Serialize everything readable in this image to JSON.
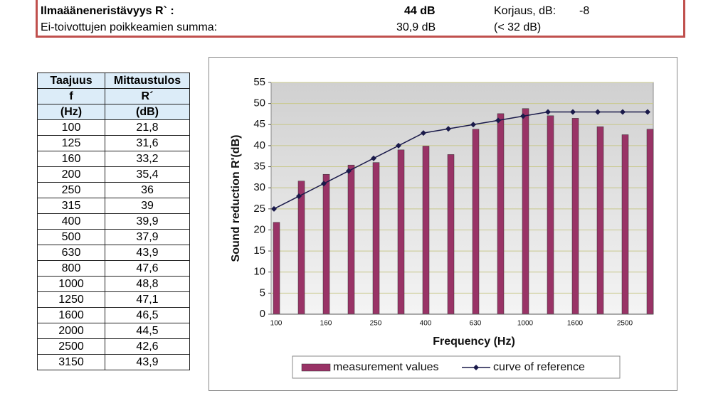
{
  "header": {
    "rows": [
      [
        "Ilmaääneneristävyys R` :",
        "44 dB",
        "Korjaus, dB:",
        "-8"
      ],
      [
        "Ei-toivottujen poikkeamien summa:",
        "30,9 dB",
        "(< 32 dB)"
      ]
    ]
  },
  "table": {
    "header": [
      [
        "Taajuus",
        "Mittaustulos"
      ],
      [
        "f",
        "R´"
      ],
      [
        "(Hz)",
        "(dB)"
      ]
    ],
    "rows": [
      [
        "100",
        "21,8"
      ],
      [
        "125",
        "31,6"
      ],
      [
        "160",
        "33,2"
      ],
      [
        "200",
        "35,4"
      ],
      [
        "250",
        "36"
      ],
      [
        "315",
        "39"
      ],
      [
        "400",
        "39,9"
      ],
      [
        "500",
        "37,9"
      ],
      [
        "630",
        "43,9"
      ],
      [
        "800",
        "47,6"
      ],
      [
        "1000",
        "48,8"
      ],
      [
        "1250",
        "47,1"
      ],
      [
        "1600",
        "46,5"
      ],
      [
        "2000",
        "44,5"
      ],
      [
        "2500",
        "42,6"
      ],
      [
        "3150",
        "43,9"
      ]
    ]
  },
  "chart_data": {
    "type": "bar",
    "x_label": "Frequency (Hz)",
    "y_label": "Sound reduction R'(dB)",
    "categories": [
      "100",
      null,
      "160",
      null,
      "250",
      null,
      "400",
      null,
      "630",
      null,
      "1000",
      null,
      "1600",
      null,
      "2500",
      null
    ],
    "series": [
      {
        "name": "measurement values",
        "type": "bar",
        "color": "#993366",
        "values": [
          21.8,
          31.6,
          33.2,
          35.4,
          36,
          39,
          39.9,
          37.9,
          43.9,
          47.6,
          48.8,
          47.1,
          46.5,
          44.5,
          42.6,
          43.9
        ]
      },
      {
        "name": "curve of reference",
        "type": "line",
        "color": "#1a1a4a",
        "values": [
          25,
          28,
          31,
          34,
          37,
          40,
          43,
          44,
          45,
          46,
          47,
          48,
          48,
          48,
          48,
          48
        ]
      }
    ],
    "ylim": [
      0,
      55
    ],
    "yticks": [
      0,
      5,
      10,
      15,
      20,
      25,
      30,
      35,
      40,
      45,
      50,
      55
    ],
    "grid": true,
    "legend": "bottom"
  }
}
